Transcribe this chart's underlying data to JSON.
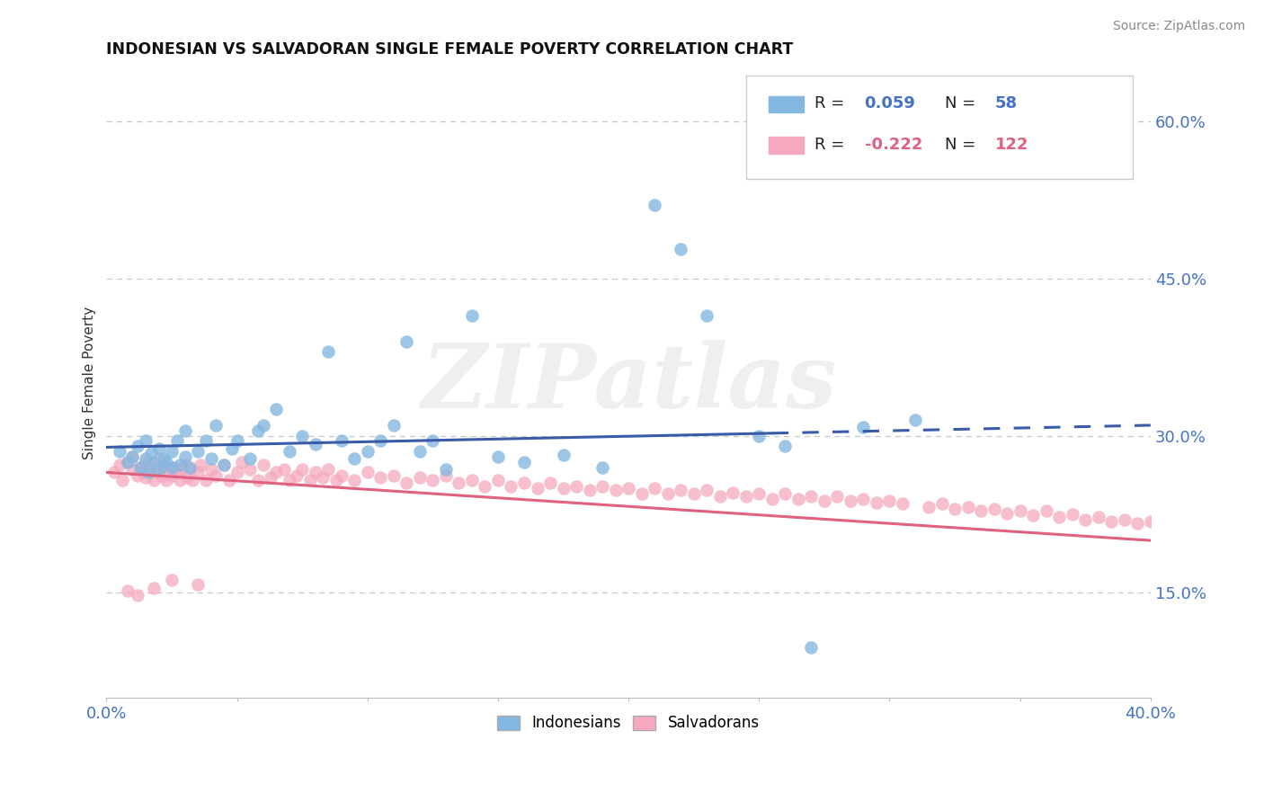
{
  "title": "INDONESIAN VS SALVADORAN SINGLE FEMALE POVERTY CORRELATION CHART",
  "source_text": "Source: ZipAtlas.com",
  "ylabel": "Single Female Poverty",
  "xlim": [
    0.0,
    0.4
  ],
  "ylim": [
    0.05,
    0.65
  ],
  "xtick_positions": [
    0.0,
    0.05,
    0.1,
    0.15,
    0.2,
    0.25,
    0.3,
    0.35,
    0.4
  ],
  "xticklabels": [
    "0.0%",
    "",
    "",
    "",
    "",
    "",
    "",
    "",
    "40.0%"
  ],
  "ytick_right_positions": [
    0.15,
    0.3,
    0.45,
    0.6
  ],
  "ytick_right_labels": [
    "15.0%",
    "30.0%",
    "45.0%",
    "60.0%"
  ],
  "indonesian_color": "#85b8e0",
  "salvadoran_color": "#f5a8be",
  "indonesian_line_color": "#3a5ca8",
  "salvadoran_line_color": "#e06080",
  "r_indonesian": 0.059,
  "n_indonesian": 58,
  "r_salvadoran": -0.222,
  "n_salvadoran": 122,
  "watermark": "ZIPatlas",
  "background_color": "#ffffff",
  "grid_color": "#c8c8c8",
  "legend_r_indo_label": "R = ",
  "legend_r_indo_value": "0.059",
  "legend_n_indo_label": "N = ",
  "legend_n_indo_value": "58",
  "legend_r_salv_label": "R = ",
  "legend_r_salv_value": "-0.222",
  "legend_n_salv_label": "N = ",
  "legend_n_salv_value": "122",
  "legend_value_color_indo": "#4472c4",
  "legend_value_color_salv": "#e06080",
  "bottom_legend_indonesians": "Indonesians",
  "bottom_legend_salvadorans": "Salvadorans"
}
